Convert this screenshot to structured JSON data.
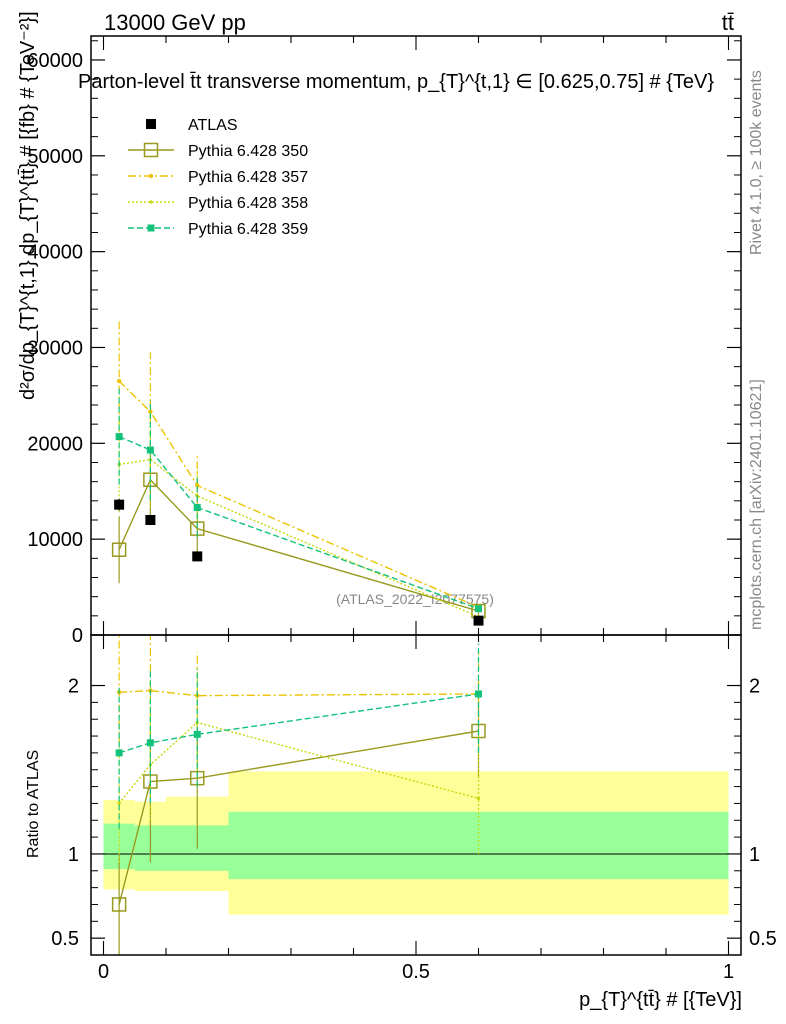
{
  "header": {
    "energy_label": "13000 GeV pp",
    "process_label": "tt̄"
  },
  "side_labels": {
    "rivet": "Rivet 4.1.0, ≥ 100k events",
    "mcplots": "mcplots.cern.ch [arXiv:2401.10621]"
  },
  "chart_data": [
    {
      "type": "scatter",
      "title": "Parton-level t̄t transverse momentum, p_{T}^{t,1} ∈ [0.625,0.75] # {TeV}",
      "ylabel": "d²σ/dp_{T}^{t,1} dp_{T}^{tt̄} # [{fb} # {TeV⁻²}]",
      "xlabel": "p_{T}^{tt̄} # [{TeV}]",
      "analysis_label": "(ATLAS_2022_I2077575)",
      "xlim": [
        -0.02,
        1.02
      ],
      "ylim": [
        0,
        62500
      ],
      "y_ticks": [
        0,
        10000,
        20000,
        30000,
        40000,
        50000,
        60000
      ],
      "y_tick_labels": [
        "0",
        "10000",
        "20000",
        "30000",
        "40000",
        "50000",
        "60000"
      ],
      "x_ticks": [
        0,
        0.5,
        1
      ],
      "legend_position": "top-left",
      "series": [
        {
          "name": "ATLAS",
          "color": "#000000",
          "marker": "filled-square",
          "x": [
            0.025,
            0.075,
            0.15,
            0.6
          ],
          "y": [
            13600,
            12000,
            8200,
            1500
          ],
          "yerr": [
            600,
            500,
            400,
            150
          ]
        },
        {
          "name": "Pythia 6.428 350",
          "color": "#999a1f",
          "marker": "open-square",
          "line": "solid",
          "x": [
            0.025,
            0.075,
            0.15,
            0.6
          ],
          "y": [
            8900,
            16200,
            11100,
            2500
          ],
          "yerr": [
            3500,
            4000,
            3300,
            400
          ]
        },
        {
          "name": "Pythia 6.428 357",
          "color": "#ecc300",
          "marker": "small-star",
          "line": "dash-dot",
          "x": [
            0.025,
            0.075,
            0.15,
            0.6
          ],
          "y": [
            26500,
            23300,
            15600,
            2900
          ],
          "yerr": [
            6300,
            6200,
            3300,
            300
          ]
        },
        {
          "name": "Pythia 6.428 358",
          "color": "#c9d80a",
          "marker": "small-dot",
          "line": "dotted",
          "x": [
            0.025,
            0.075,
            0.15,
            0.6
          ],
          "y": [
            17800,
            18300,
            14500,
            1900
          ],
          "yerr": [
            5000,
            5000,
            3000,
            400
          ]
        },
        {
          "name": "Pythia 6.428 359",
          "color": "#12c27a",
          "marker": "small-square",
          "line": "dashed",
          "x": [
            0.025,
            0.075,
            0.15,
            0.6
          ],
          "y": [
            20700,
            19300,
            13300,
            2750
          ],
          "yerr": [
            5000,
            5200,
            3100,
            350
          ]
        }
      ]
    },
    {
      "type": "scatter",
      "title": "",
      "ylabel": "Ratio to ATLAS",
      "xlabel": "p_{T}^{tt̄} # [{TeV}]",
      "xlim": [
        -0.02,
        1.02
      ],
      "ylim": [
        0.4,
        2.3
      ],
      "y_ticks": [
        0.5,
        1,
        2
      ],
      "y_tick_labels": [
        "0.5",
        "1",
        "2"
      ],
      "x_ticks": [
        0,
        0.5,
        1
      ],
      "x_tick_labels": [
        "0",
        "0.5",
        "1"
      ],
      "bands": {
        "bin_edges": [
          0,
          0.05,
          0.1,
          0.2,
          1.0
        ],
        "yellow_low": [
          0.79,
          0.78,
          0.78,
          0.64
        ],
        "yellow_high": [
          1.32,
          1.31,
          1.34,
          1.49
        ],
        "green_low": [
          0.91,
          0.9,
          0.9,
          0.85
        ],
        "green_high": [
          1.18,
          1.17,
          1.17,
          1.25
        ],
        "yellow_color": "#ffff99",
        "green_color": "#99ff99"
      },
      "series": [
        {
          "name": "Pythia 6.428 350",
          "color": "#999a1f",
          "marker": "open-square",
          "line": "solid",
          "x": [
            0.025,
            0.075,
            0.15,
            0.6
          ],
          "y": [
            0.7,
            1.43,
            1.45,
            1.73
          ],
          "ylow": [
            0.35,
            0.95,
            1.03,
            1.45
          ],
          "yhigh": [
            1.0,
            1.75,
            1.75,
            1.95
          ]
        },
        {
          "name": "Pythia 6.428 357",
          "color": "#ecc300",
          "marker": "small-star",
          "line": "dash-dot",
          "x": [
            0.025,
            0.075,
            0.15,
            0.6
          ],
          "y": [
            1.96,
            1.97,
            1.94,
            1.95
          ],
          "ylow": [
            1.65,
            1.7,
            1.75,
            1.8
          ],
          "yhigh": [
            2.35,
            2.35,
            2.2,
            2.2
          ]
        },
        {
          "name": "Pythia 6.428 358",
          "color": "#c9d80a",
          "marker": "small-dot",
          "line": "dotted",
          "x": [
            0.025,
            0.075,
            0.15,
            0.6
          ],
          "y": [
            1.3,
            1.53,
            1.78,
            1.33
          ],
          "ylow": [
            0.95,
            1.2,
            1.45,
            1.0
          ],
          "yhigh": [
            1.7,
            1.9,
            2.1,
            1.7
          ]
        },
        {
          "name": "Pythia 6.428 359",
          "color": "#12c27a",
          "marker": "small-square",
          "line": "dashed",
          "x": [
            0.025,
            0.075,
            0.15,
            0.6
          ],
          "y": [
            1.6,
            1.66,
            1.71,
            1.95
          ],
          "ylow": [
            1.15,
            1.3,
            1.4,
            1.6
          ],
          "yhigh": [
            2.0,
            2.1,
            2.1,
            2.25
          ]
        }
      ]
    }
  ]
}
